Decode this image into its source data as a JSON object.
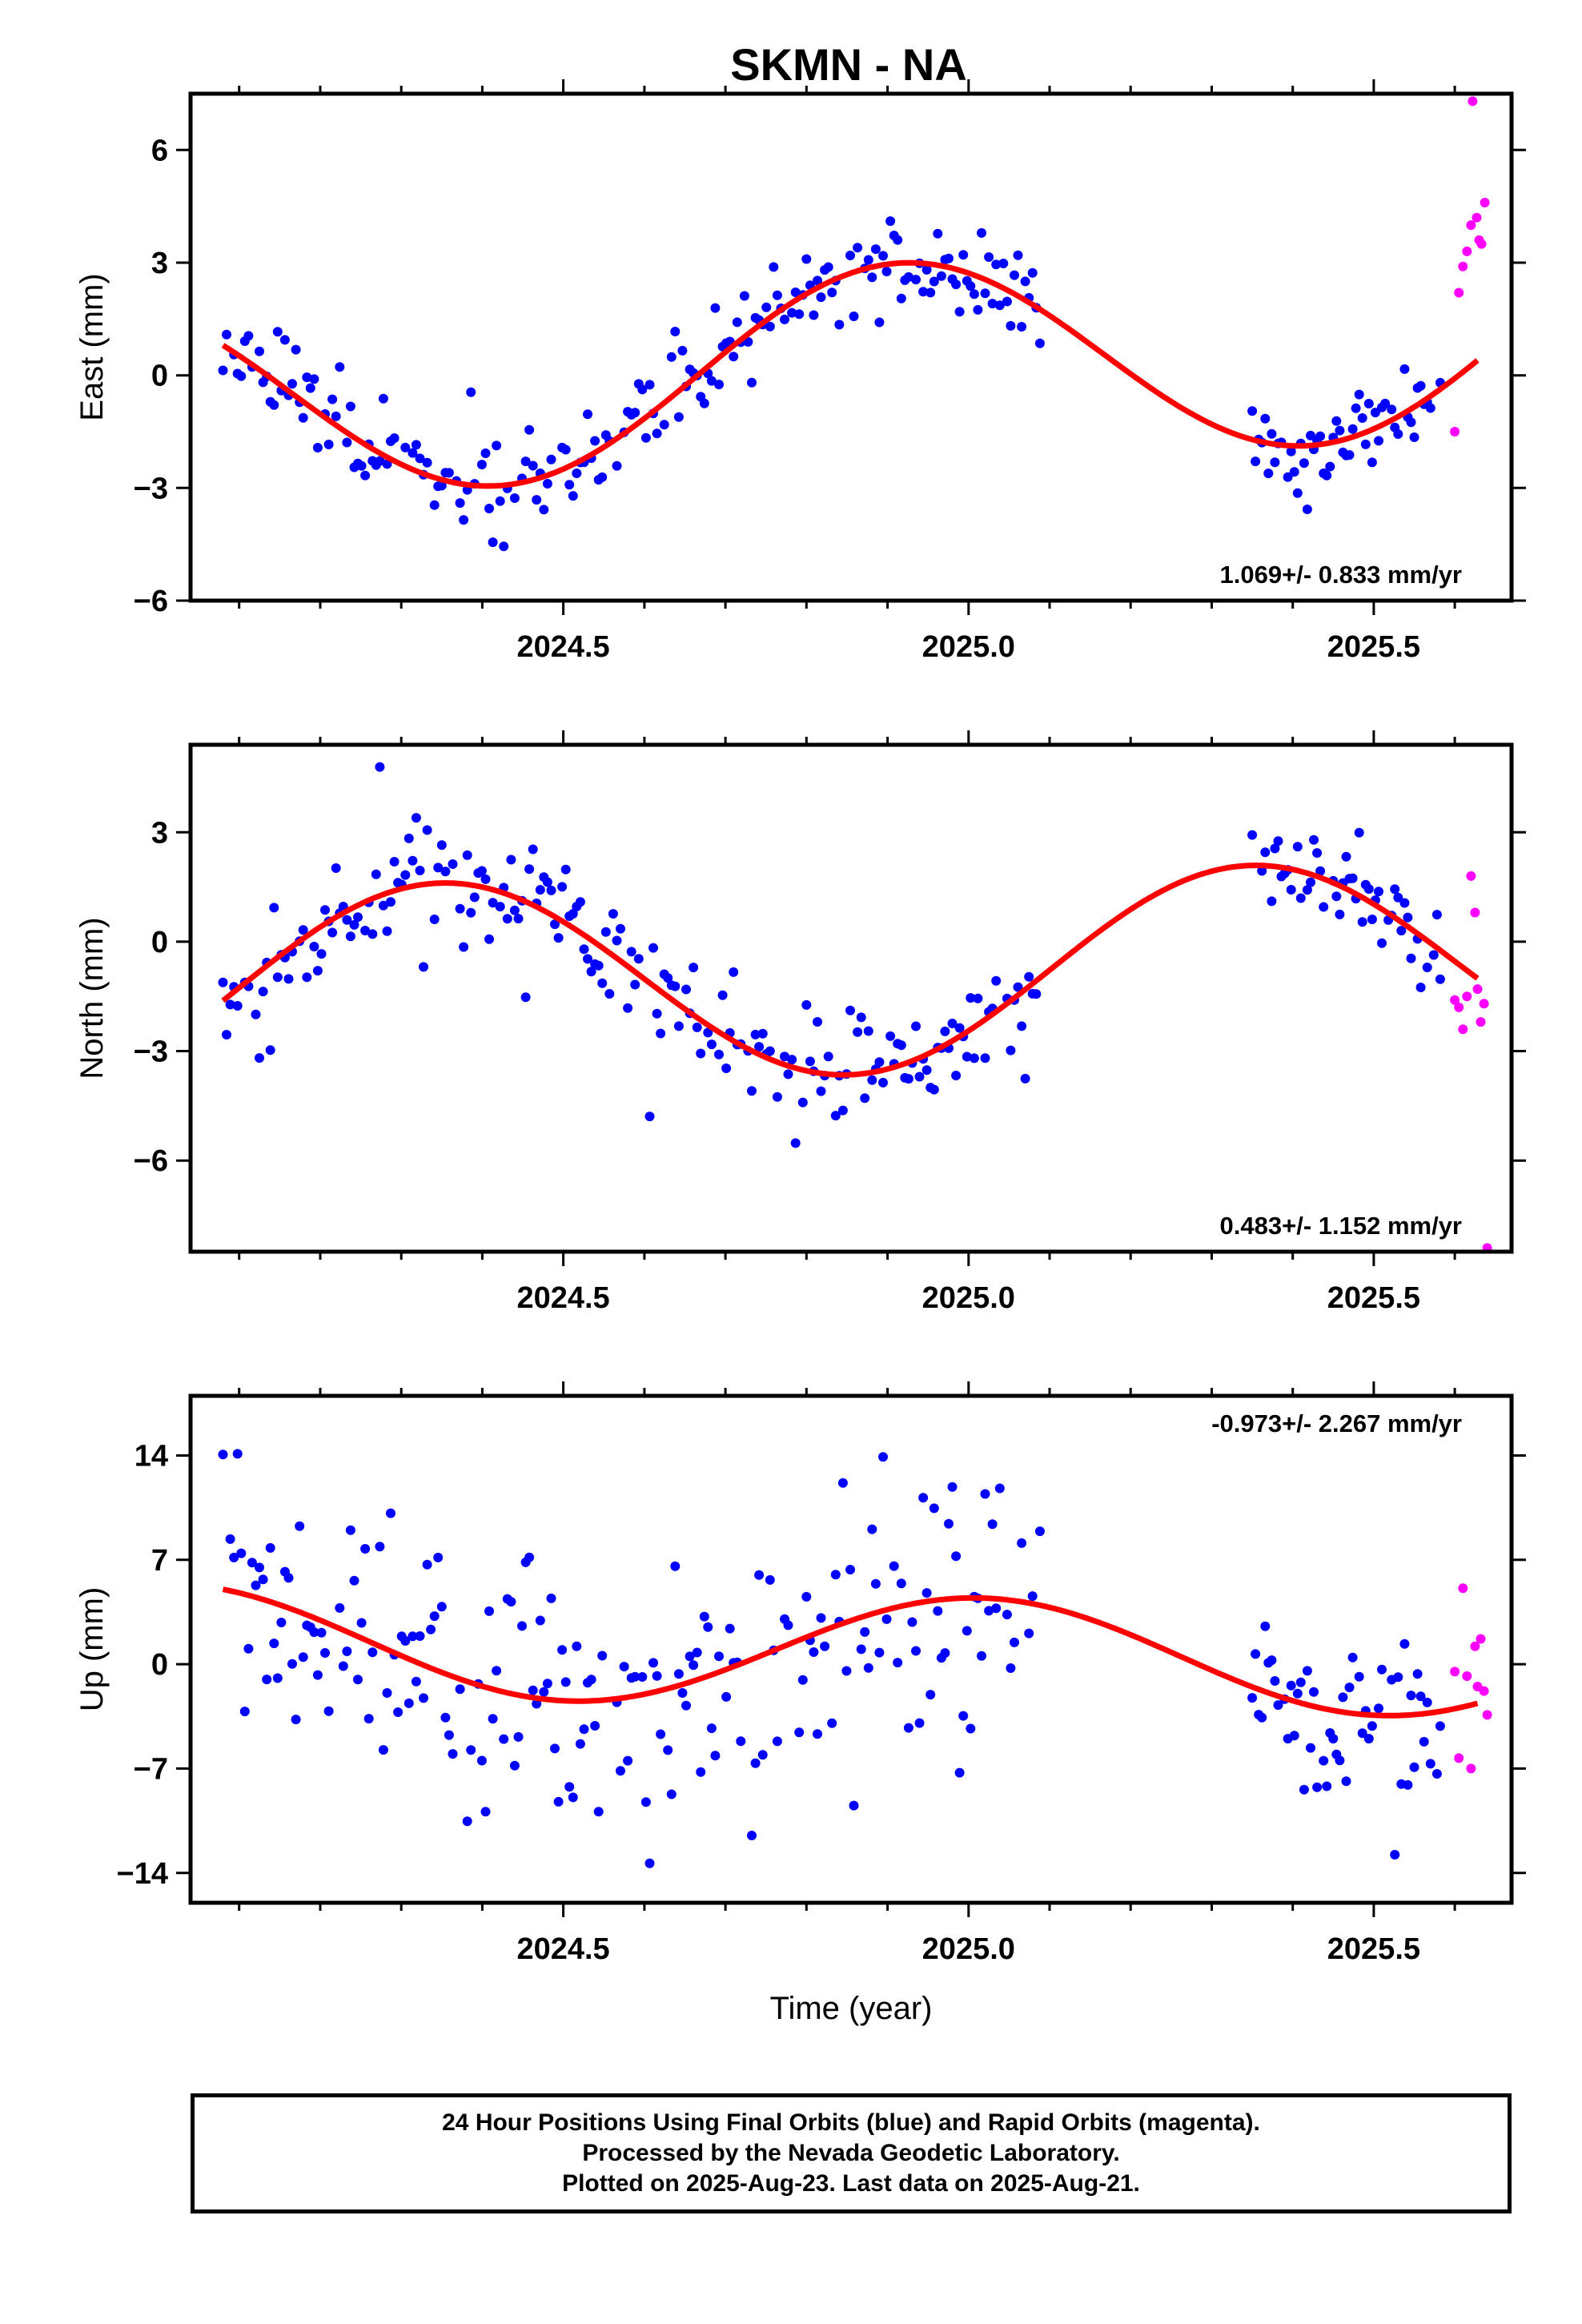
{
  "chart_data": [
    {
      "type": "scatter",
      "title": "SKMN - NA",
      "ylabel": "East (mm)",
      "xlim": [
        2024.04,
        2025.67
      ],
      "ylim": [
        -6.0,
        7.5
      ],
      "xticks": [
        2024.5,
        2025.0,
        2025.5
      ],
      "xtick_labels": [
        "2024.5",
        "2025.0",
        "2025.5"
      ],
      "yticks": [
        -6,
        -3,
        0,
        3,
        6
      ],
      "ytick_labels": [
        "−6",
        "−3",
        "0",
        "3",
        "6"
      ],
      "rate": "1.069+/- 0.833 mm/yr",
      "fit": {
        "a": 0.22,
        "b": 1.069,
        "t0": 2024.85,
        "amp": 2.7,
        "phase": 1.15,
        "start": 2024.08,
        "end": 2025.63
      },
      "final_segments": [
        {
          "start": 2024.08,
          "end": 2025.09,
          "scatter": 0.7,
          "step": 0.0045,
          "seed": 11
        },
        {
          "start": 2025.35,
          "end": 2025.585,
          "scatter": 0.55,
          "step": 0.004,
          "seed": 12
        }
      ],
      "rapid": {
        "x": [
          2025.6,
          2025.605,
          2025.61,
          2025.615,
          2025.62,
          2025.622,
          2025.627,
          2025.63,
          2025.633,
          2025.637
        ],
        "y": [
          -1.5,
          2.2,
          2.9,
          3.3,
          4.0,
          7.3,
          4.2,
          3.6,
          3.5,
          4.6
        ]
      },
      "colors": {
        "final": "#0000ff",
        "rapid": "#ff00ff",
        "fit": "#ff0000"
      }
    },
    {
      "type": "scatter",
      "title": "",
      "ylabel": "North (mm)",
      "xlim": [
        2024.04,
        2025.67
      ],
      "ylim": [
        -8.5,
        5.4
      ],
      "xticks": [
        2024.5,
        2025.0,
        2025.5
      ],
      "xtick_labels": [
        "2024.5",
        "2025.0",
        "2025.5"
      ],
      "yticks": [
        -6,
        -3,
        0,
        3
      ],
      "ytick_labels": [
        "−6",
        "−3",
        "0",
        "3"
      ],
      "rate": "0.483+/- 1.152 mm/yr",
      "fit": {
        "a": -0.9,
        "b": 0.483,
        "t0": 2024.85,
        "amp": 2.75,
        "phase": -1.5708,
        "start": 2024.08,
        "end": 2025.63
      },
      "final_segments": [
        {
          "start": 2024.08,
          "end": 2025.09,
          "scatter": 0.85,
          "step": 0.0045,
          "seed": 21
        },
        {
          "start": 2025.35,
          "end": 2025.585,
          "scatter": 0.7,
          "step": 0.004,
          "seed": 22
        }
      ],
      "rapid": {
        "x": [
          2025.6,
          2025.605,
          2025.61,
          2025.615,
          2025.62,
          2025.625,
          2025.628,
          2025.632,
          2025.636,
          2025.64
        ],
        "y": [
          -1.6,
          -1.8,
          -2.4,
          -1.5,
          1.8,
          0.8,
          -1.3,
          -2.2,
          -1.7,
          -8.4
        ]
      },
      "colors": {
        "final": "#0000ff",
        "rapid": "#ff00ff",
        "fit": "#ff0000"
      }
    },
    {
      "type": "scatter",
      "title": "",
      "ylabel": "Up (mm)",
      "xlabel": "Time (year)",
      "xlim": [
        2024.04,
        2025.67
      ],
      "ylim": [
        -16.0,
        18.0
      ],
      "xticks": [
        2024.5,
        2025.0,
        2025.5
      ],
      "xtick_labels": [
        "2024.5",
        "2025.0",
        "2025.5"
      ],
      "yticks": [
        -14,
        -7,
        0,
        7,
        14
      ],
      "ytick_labels": [
        "−14",
        "−7",
        "0",
        "7",
        "14"
      ],
      "rate": "-0.973+/- 2.267 mm/yr",
      "fit": {
        "a": 0.9,
        "b": -0.973,
        "t0": 2024.85,
        "amp": 3.7,
        "phase": 0.55,
        "start": 2024.08,
        "end": 2025.63
      },
      "final_segments": [
        {
          "start": 2024.08,
          "end": 2025.09,
          "scatter": 4.3,
          "step": 0.0045,
          "seed": 31
        },
        {
          "start": 2025.35,
          "end": 2025.585,
          "scatter": 3.2,
          "step": 0.004,
          "seed": 32
        }
      ],
      "rapid": {
        "x": [
          2025.6,
          2025.605,
          2025.61,
          2025.615,
          2025.62,
          2025.625,
          2025.628,
          2025.632,
          2025.636,
          2025.64
        ],
        "y": [
          -0.5,
          -6.3,
          5.1,
          -0.8,
          -7.0,
          1.2,
          -1.5,
          1.7,
          -1.8,
          -3.4
        ]
      },
      "colors": {
        "final": "#0000ff",
        "rapid": "#ff00ff",
        "fit": "#ff0000"
      }
    }
  ],
  "footer": {
    "line1": "24 Hour Positions Using Final Orbits (blue) and Rapid Orbits (magenta).",
    "line2": "Processed by the Nevada Geodetic Laboratory.",
    "line3": "Plotted on 2025-Aug-23. Last data on 2025-Aug-21."
  }
}
